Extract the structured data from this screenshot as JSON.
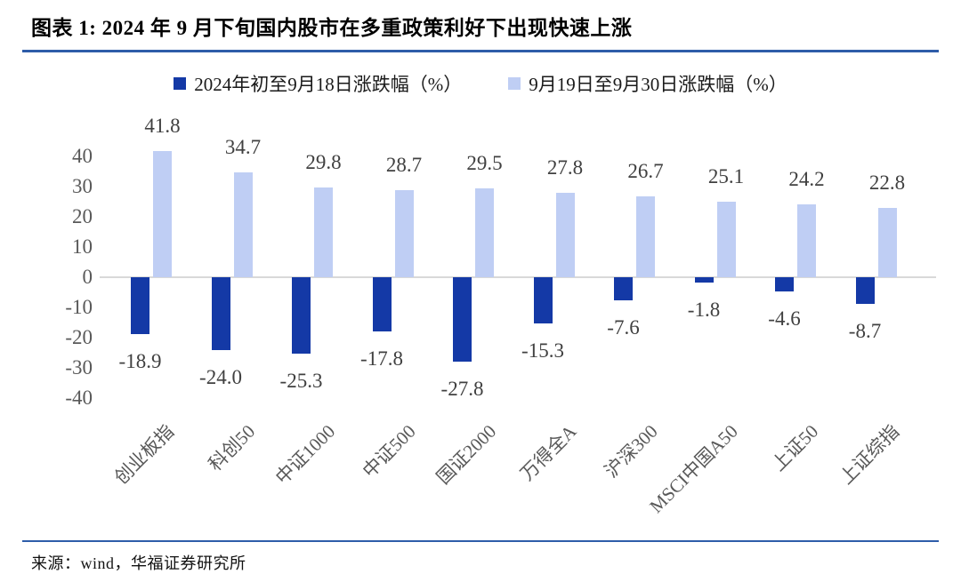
{
  "figure": {
    "title": "图表 1: 2024 年 9 月下旬国内股市在多重政策利好下出现快速上涨",
    "source": "来源：wind，华福证券研究所"
  },
  "colors": {
    "series_1_bar": "#1439A6",
    "series_2_bar": "#BFCEF4",
    "divider_line": "#2E5DA9",
    "zero_axis_line": "#D9D9D9",
    "tick_label_text": "#595959",
    "data_label_text": "#404040",
    "category_label_text": "#595959",
    "legend_text": "#1A1A1A",
    "title_text": "#000000"
  },
  "chart_data": {
    "type": "bar",
    "title": "图表 1: 2024 年 9 月下旬国内股市在多重政策利好下出现快速上涨",
    "categories": [
      "创业板指",
      "科创50",
      "中证1000",
      "中证500",
      "国证2000",
      "万得全A",
      "沪深300",
      "MSCI中国A50",
      "上证50",
      "上证综指"
    ],
    "series": [
      {
        "name": "2024年初至9月18日涨跌幅（%）",
        "color": "#1439A6",
        "values": [
          -18.9,
          -24.0,
          -25.3,
          -17.8,
          -27.8,
          -15.3,
          -7.6,
          -1.8,
          -4.6,
          -8.7
        ]
      },
      {
        "name": "9月19日至9月30日涨跌幅（%）",
        "color": "#BFCEF4",
        "values": [
          41.8,
          34.7,
          29.8,
          28.7,
          29.5,
          27.8,
          26.7,
          25.1,
          24.2,
          22.8
        ]
      }
    ],
    "y_ticks": [
      40,
      30,
      20,
      10,
      0,
      -10,
      -20,
      -30,
      -40
    ],
    "ylim": [
      -40,
      45
    ],
    "xlabel": "",
    "ylabel": "",
    "grid": false,
    "legend_position": "top",
    "data_labels": true,
    "data_label_decimals": 1
  }
}
